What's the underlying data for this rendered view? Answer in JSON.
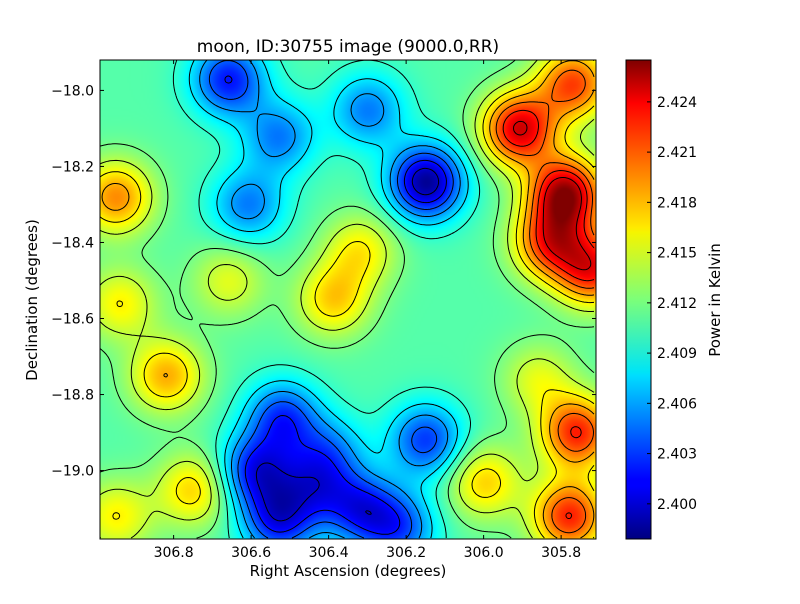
{
  "chart_data": {
    "type": "heatmap",
    "title": "moon, ID:30755 image (9000.0,RR)",
    "xlabel": "Right Ascension (degrees)",
    "ylabel": "Declination (degrees)",
    "xlim": [
      306.99,
      305.71
    ],
    "ylim": [
      -19.18,
      -17.92
    ],
    "x_ticks": [
      306.8,
      306.6,
      306.4,
      306.2,
      306.0,
      305.8
    ],
    "x_tick_labels": [
      "306.8",
      "306.6",
      "306.4",
      "306.2",
      "306.0",
      "305.8"
    ],
    "y_ticks": [
      -18.0,
      -18.2,
      -18.4,
      -18.6,
      -18.8,
      -19.0
    ],
    "y_tick_labels": [
      "−18.0",
      "−18.2",
      "−18.4",
      "−18.6",
      "−18.8",
      "−19.0"
    ],
    "colorbar": {
      "label": "Power in Kelvin",
      "range": [
        2.3979,
        2.4265
      ],
      "ticks": [
        2.4,
        2.403,
        2.406,
        2.409,
        2.412,
        2.415,
        2.418,
        2.421,
        2.424
      ],
      "tick_labels": [
        "2.400",
        "2.403",
        "2.406",
        "2.409",
        "2.412",
        "2.415",
        "2.418",
        "2.421",
        "2.424"
      ],
      "colormap": "jet"
    },
    "background_level": 2.411,
    "contour_levels": [
      2.4,
      2.402,
      2.404,
      2.406,
      2.408,
      2.41,
      2.412,
      2.414,
      2.416,
      2.418,
      2.42,
      2.422,
      2.424
    ],
    "features": [
      {
        "ra": 306.15,
        "dec": -18.24,
        "value": 2.3985,
        "kind": "minimum"
      },
      {
        "ra": 306.66,
        "dec": -17.97,
        "value": 2.402,
        "kind": "minimum"
      },
      {
        "ra": 306.61,
        "dec": -18.3,
        "value": 2.405,
        "kind": "minimum"
      },
      {
        "ra": 306.53,
        "dec": -18.12,
        "value": 2.405,
        "kind": "minimum"
      },
      {
        "ra": 306.52,
        "dec": -18.86,
        "value": 2.403,
        "kind": "minimum"
      },
      {
        "ra": 306.59,
        "dec": -19.0,
        "value": 2.402,
        "kind": "minimum"
      },
      {
        "ra": 306.53,
        "dec": -19.13,
        "value": 2.402,
        "kind": "minimum"
      },
      {
        "ra": 306.32,
        "dec": -19.1,
        "value": 2.403,
        "kind": "minimum"
      },
      {
        "ra": 306.15,
        "dec": -18.92,
        "value": 2.403,
        "kind": "minimum"
      },
      {
        "ra": 306.22,
        "dec": -19.15,
        "value": 2.404,
        "kind": "minimum"
      },
      {
        "ra": 306.3,
        "dec": -18.05,
        "value": 2.405,
        "kind": "minimum"
      },
      {
        "ra": 306.4,
        "dec": -18.95,
        "value": 2.406,
        "kind": "minimum"
      },
      {
        "ra": 306.44,
        "dec": -19.04,
        "value": 2.405,
        "kind": "minimum"
      },
      {
        "ra": 305.79,
        "dec": -18.27,
        "value": 2.4255,
        "kind": "maximum"
      },
      {
        "ra": 305.91,
        "dec": -18.1,
        "value": 2.424,
        "kind": "maximum"
      },
      {
        "ra": 305.77,
        "dec": -17.98,
        "value": 2.421,
        "kind": "maximum"
      },
      {
        "ra": 305.72,
        "dec": -18.47,
        "value": 2.422,
        "kind": "maximum"
      },
      {
        "ra": 305.76,
        "dec": -18.9,
        "value": 2.422,
        "kind": "maximum"
      },
      {
        "ra": 305.78,
        "dec": -19.12,
        "value": 2.422,
        "kind": "maximum"
      },
      {
        "ra": 305.83,
        "dec": -18.4,
        "value": 2.421,
        "kind": "maximum"
      },
      {
        "ra": 306.0,
        "dec": -19.03,
        "value": 2.417,
        "kind": "maximum"
      },
      {
        "ra": 306.39,
        "dec": -18.55,
        "value": 2.417,
        "kind": "maximum"
      },
      {
        "ra": 306.32,
        "dec": -18.42,
        "value": 2.416,
        "kind": "maximum"
      },
      {
        "ra": 306.95,
        "dec": -18.28,
        "value": 2.419,
        "kind": "maximum"
      },
      {
        "ra": 306.94,
        "dec": -18.56,
        "value": 2.416,
        "kind": "maximum"
      },
      {
        "ra": 306.82,
        "dec": -18.75,
        "value": 2.418,
        "kind": "maximum"
      },
      {
        "ra": 306.75,
        "dec": -19.05,
        "value": 2.417,
        "kind": "maximum"
      },
      {
        "ra": 306.95,
        "dec": -19.12,
        "value": 2.416,
        "kind": "maximum"
      },
      {
        "ra": 306.66,
        "dec": -18.5,
        "value": 2.415,
        "kind": "maximum"
      },
      {
        "ra": 305.86,
        "dec": -18.76,
        "value": 2.415,
        "kind": "maximum"
      }
    ]
  }
}
